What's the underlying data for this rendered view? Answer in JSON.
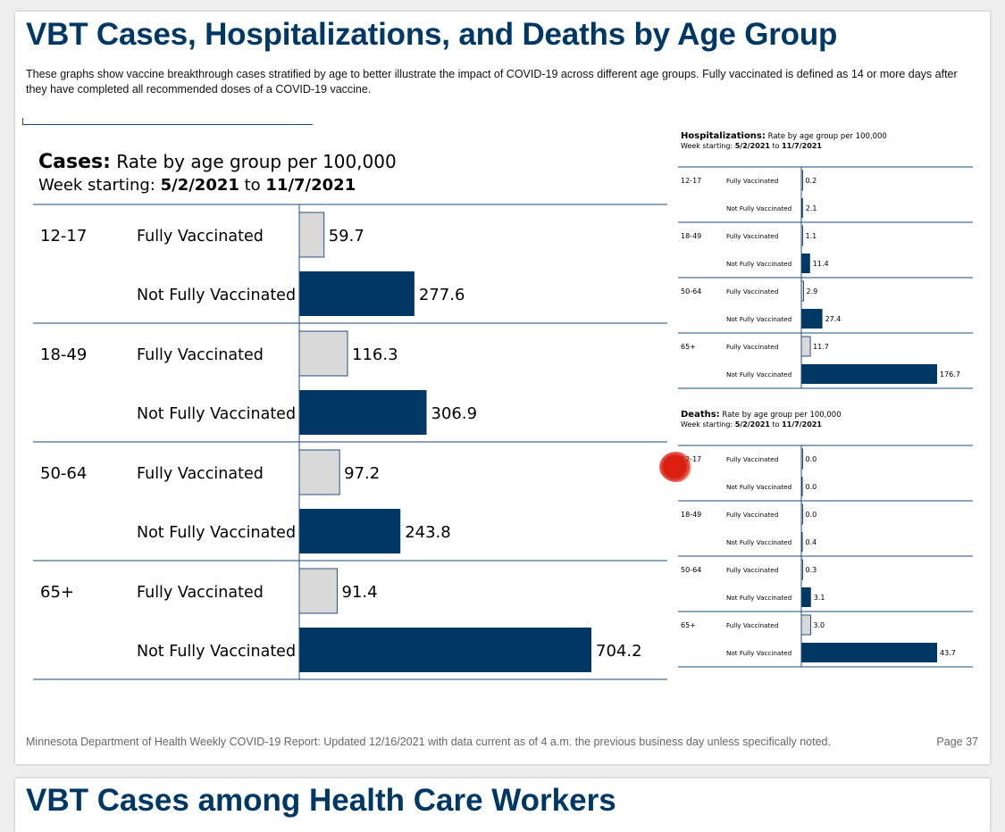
{
  "header": {
    "title": "VBT Cases, Hospitalizations, and Deaths by Age Group",
    "description": "These graphs show vaccine breakthrough cases stratified by age to better illustrate the impact of COVID-19 across different age groups. Fully vaccinated is defined as 14 or more days after they have completed all recommended doses of a COVID-19 vaccine."
  },
  "footer": {
    "text": "Minnesota Department of Health Weekly COVID-19 Report: Updated 12/16/2021 with data current as of 4 a.m. the previous business day unless specifically noted.",
    "page": "Page 37"
  },
  "next_page": {
    "title": "VBT Cases among Health Care Workers"
  },
  "colors": {
    "title": "#003865",
    "fully_vaccinated": "#d9d9d9",
    "not_fully_vaccinated": "#003865"
  },
  "chart_data": [
    {
      "id": "cases",
      "type": "bar",
      "orientation": "horizontal",
      "title": "Cases:",
      "subtitle": "Rate by age group per 100,000",
      "week_prefix": "Week starting:",
      "week_start": "5/2/2021",
      "week_to": "to",
      "week_end": "11/7/2021",
      "groups": [
        {
          "age": "12-17",
          "bars": [
            {
              "status": "Fully Vaccinated",
              "value": 59.7,
              "label": "59.7"
            },
            {
              "status": "Not Fully Vaccinated",
              "value": 277.6,
              "label": "277.6"
            }
          ]
        },
        {
          "age": "18-49",
          "bars": [
            {
              "status": "Fully Vaccinated",
              "value": 116.3,
              "label": "116.3"
            },
            {
              "status": "Not Fully Vaccinated",
              "value": 306.9,
              "label": "306.9"
            }
          ]
        },
        {
          "age": "50-64",
          "bars": [
            {
              "status": "Fully Vaccinated",
              "value": 97.2,
              "label": "97.2"
            },
            {
              "status": "Not Fully Vaccinated",
              "value": 243.8,
              "label": "243.8"
            }
          ]
        },
        {
          "age": "65+",
          "bars": [
            {
              "status": "Fully Vaccinated",
              "value": 91.4,
              "label": "91.4"
            },
            {
              "status": "Not Fully Vaccinated",
              "value": 704.2,
              "label": "704.2"
            }
          ]
        }
      ]
    },
    {
      "id": "hospitalizations",
      "type": "bar",
      "orientation": "horizontal",
      "title": "Hospitalizations:",
      "subtitle": "Rate by age group per 100,000",
      "week_prefix": "Week starting:",
      "week_start": "5/2/2021",
      "week_to": "to",
      "week_end": "11/7/2021",
      "groups": [
        {
          "age": "12-17",
          "bars": [
            {
              "status": "Fully Vaccinated",
              "value": 0.2,
              "label": "0.2"
            },
            {
              "status": "Not Fully Vaccinated",
              "value": 2.1,
              "label": "2.1"
            }
          ]
        },
        {
          "age": "18-49",
          "bars": [
            {
              "status": "Fully Vaccinated",
              "value": 1.1,
              "label": "1.1"
            },
            {
              "status": "Not Fully Vaccinated",
              "value": 11.4,
              "label": "11.4"
            }
          ]
        },
        {
          "age": "50-64",
          "bars": [
            {
              "status": "Fully Vaccinated",
              "value": 2.9,
              "label": "2.9"
            },
            {
              "status": "Not Fully Vaccinated",
              "value": 27.4,
              "label": "27.4"
            }
          ]
        },
        {
          "age": "65+",
          "bars": [
            {
              "status": "Fully Vaccinated",
              "value": 11.7,
              "label": "11.7"
            },
            {
              "status": "Not Fully Vaccinated",
              "value": 176.7,
              "label": "176.7"
            }
          ]
        }
      ]
    },
    {
      "id": "deaths",
      "type": "bar",
      "orientation": "horizontal",
      "title": "Deaths:",
      "subtitle": "Rate by age group per 100,000",
      "week_prefix": "Week starting:",
      "week_start": "5/2/2021",
      "week_to": "to",
      "week_end": "11/7/2021",
      "groups": [
        {
          "age": "12-17",
          "bars": [
            {
              "status": "Fully Vaccinated",
              "value": 0.0,
              "label": "0.0"
            },
            {
              "status": "Not Fully Vaccinated",
              "value": 0.0,
              "label": "0.0"
            }
          ]
        },
        {
          "age": "18-49",
          "bars": [
            {
              "status": "Fully Vaccinated",
              "value": 0.0,
              "label": "0.0"
            },
            {
              "status": "Not Fully Vaccinated",
              "value": 0.4,
              "label": "0.4"
            }
          ]
        },
        {
          "age": "50-64",
          "bars": [
            {
              "status": "Fully Vaccinated",
              "value": 0.3,
              "label": "0.3"
            },
            {
              "status": "Not Fully Vaccinated",
              "value": 3.1,
              "label": "3.1"
            }
          ]
        },
        {
          "age": "65+",
          "bars": [
            {
              "status": "Fully Vaccinated",
              "value": 3.0,
              "label": "3.0"
            },
            {
              "status": "Not Fully Vaccinated",
              "value": 43.7,
              "label": "43.7"
            }
          ]
        }
      ]
    }
  ]
}
